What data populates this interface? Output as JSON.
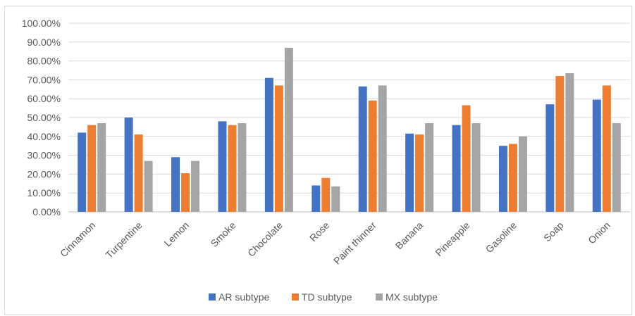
{
  "chart_data": {
    "type": "bar",
    "title": "",
    "xlabel": "",
    "ylabel": "",
    "ylim": [
      0,
      100
    ],
    "y_ticks": [
      "0.00%",
      "10.00%",
      "20.00%",
      "30.00%",
      "40.00%",
      "50.00%",
      "60.00%",
      "70.00%",
      "80.00%",
      "90.00%",
      "100.00%"
    ],
    "grid": true,
    "legend_position": "bottom",
    "categories": [
      "Cinnamon",
      "Turpentine",
      "Lemon",
      "Smoke",
      "Chocolate",
      "Rose",
      "Paint thinner",
      "Banana",
      "Pineapple",
      "Gasoline",
      "Soap",
      "Onion"
    ],
    "series": [
      {
        "name": "AR subtype",
        "color": "#4472c4",
        "values": [
          42,
          50,
          29,
          48,
          71,
          14,
          66.5,
          41.5,
          46,
          35,
          57,
          59.5
        ]
      },
      {
        "name": "TD subtype",
        "color": "#ed7d31",
        "values": [
          46,
          41,
          20.5,
          46,
          67,
          18,
          59,
          41,
          56.5,
          36,
          72,
          67
        ]
      },
      {
        "name": "MX subtype",
        "color": "#a5a5a5",
        "values": [
          47,
          27,
          27,
          47,
          87,
          13.5,
          67,
          47,
          47,
          40,
          73.5,
          47
        ]
      }
    ]
  }
}
